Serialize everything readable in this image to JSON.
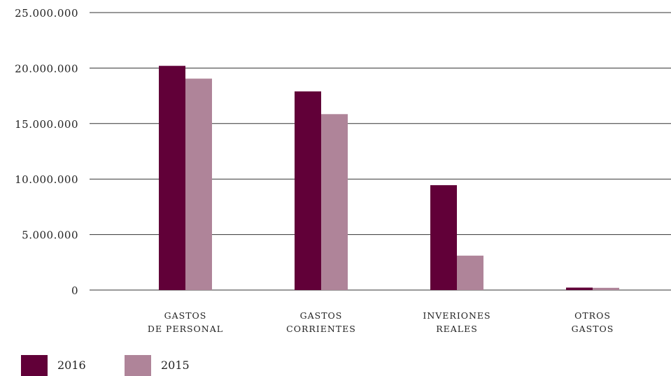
{
  "chart_data": {
    "type": "bar",
    "categories": [
      [
        "GASTOS",
        "DE PERSONAL"
      ],
      [
        "GASTOS",
        "CORRIENTES"
      ],
      [
        "INVERIONES",
        "REALES"
      ],
      [
        "OTROS",
        "GASTOS"
      ]
    ],
    "series": [
      {
        "name": "2016",
        "color": "#610038",
        "values": [
          20200000,
          17900000,
          9450000,
          220000
        ]
      },
      {
        "name": "2015",
        "color": "#af8499",
        "values": [
          19050000,
          15850000,
          3100000,
          200000
        ]
      }
    ],
    "yticks": [
      "0",
      "5.000.000",
      "10.000.000",
      "15.000.000",
      "20.000.000",
      "25.000.000"
    ],
    "ytick_values": [
      0,
      5000000,
      10000000,
      15000000,
      20000000,
      25000000
    ],
    "ylim": [
      0,
      25000000
    ],
    "grid": true,
    "legend_position": "bottom-left"
  }
}
